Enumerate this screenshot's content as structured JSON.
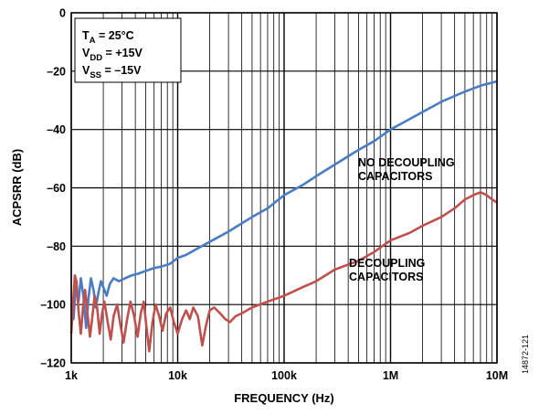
{
  "chart_data": {
    "type": "line",
    "xlabel": "FREQUENCY (Hz)",
    "ylabel": "ACPSRR (dB)",
    "x_scale": "log",
    "xlim": [
      1000,
      10000000
    ],
    "ylim": [
      -120,
      0
    ],
    "grid": true,
    "x_ticks": [
      {
        "value": 1000,
        "label": "1k"
      },
      {
        "value": 10000,
        "label": "10k"
      },
      {
        "value": 100000,
        "label": "100k"
      },
      {
        "value": 1000000,
        "label": "1M"
      },
      {
        "value": 10000000,
        "label": "10M"
      }
    ],
    "y_ticks": [
      {
        "value": 0,
        "label": "0"
      },
      {
        "value": -20,
        "label": "–20"
      },
      {
        "value": -40,
        "label": "–40"
      },
      {
        "value": -60,
        "label": "–60"
      },
      {
        "value": -80,
        "label": "–80"
      },
      {
        "value": -100,
        "label": "–100"
      },
      {
        "value": -120,
        "label": "–120"
      }
    ],
    "conditions": {
      "ta": {
        "main": "T",
        "sub": "A",
        "rest": " = 25°C"
      },
      "vdd": {
        "main": "V",
        "sub": "DD",
        "rest": " = +15V"
      },
      "vss": {
        "main": "V",
        "sub": "SS",
        "rest": " = –15V"
      }
    },
    "series": [
      {
        "label_lines": [
          "NO DECOUPLING",
          "CAPACITORS"
        ],
        "color": "#4a7cc4",
        "points": [
          [
            1000,
            -100
          ],
          [
            1050,
            -105
          ],
          [
            1100,
            -94
          ],
          [
            1170,
            -99
          ],
          [
            1230,
            -91
          ],
          [
            1300,
            -97
          ],
          [
            1380,
            -108
          ],
          [
            1450,
            -98
          ],
          [
            1530,
            -91
          ],
          [
            1620,
            -95
          ],
          [
            1700,
            -101
          ],
          [
            1800,
            -96
          ],
          [
            1900,
            -92
          ],
          [
            2000,
            -94
          ],
          [
            2150,
            -97
          ],
          [
            2300,
            -93
          ],
          [
            2500,
            -91
          ],
          [
            2800,
            -92
          ],
          [
            3200,
            -91
          ],
          [
            3700,
            -90
          ],
          [
            4200,
            -89.5
          ],
          [
            5000,
            -88.5
          ],
          [
            6000,
            -87.5
          ],
          [
            7000,
            -87
          ],
          [
            8500,
            -86
          ],
          [
            10000,
            -84
          ],
          [
            12000,
            -83
          ],
          [
            15000,
            -81
          ],
          [
            20000,
            -78.5
          ],
          [
            30000,
            -75
          ],
          [
            50000,
            -70
          ],
          [
            70000,
            -67
          ],
          [
            100000,
            -62.5
          ],
          [
            150000,
            -59
          ],
          [
            200000,
            -56
          ],
          [
            300000,
            -52
          ],
          [
            500000,
            -47
          ],
          [
            700000,
            -44
          ],
          [
            1000000,
            -40
          ],
          [
            1500000,
            -36.5
          ],
          [
            2000000,
            -34
          ],
          [
            3000000,
            -30.5
          ],
          [
            5000000,
            -27
          ],
          [
            7000000,
            -25
          ],
          [
            10000000,
            -23.5
          ]
        ]
      },
      {
        "label_lines": [
          "DECOUPLING",
          "CAPACITORS"
        ],
        "color": "#c0504d",
        "points": [
          [
            1000,
            -110
          ],
          [
            1040,
            -100
          ],
          [
            1080,
            -90
          ],
          [
            1120,
            -92
          ],
          [
            1170,
            -102
          ],
          [
            1230,
            -110
          ],
          [
            1290,
            -101
          ],
          [
            1350,
            -95
          ],
          [
            1420,
            -103
          ],
          [
            1500,
            -111
          ],
          [
            1580,
            -104
          ],
          [
            1660,
            -97
          ],
          [
            1750,
            -101
          ],
          [
            1850,
            -110
          ],
          [
            1950,
            -103
          ],
          [
            2050,
            -99
          ],
          [
            2200,
            -106
          ],
          [
            2350,
            -112
          ],
          [
            2500,
            -104
          ],
          [
            2700,
            -100
          ],
          [
            2900,
            -107
          ],
          [
            3100,
            -113
          ],
          [
            3350,
            -105
          ],
          [
            3600,
            -99
          ],
          [
            3900,
            -104
          ],
          [
            4200,
            -111
          ],
          [
            4500,
            -103
          ],
          [
            4800,
            -99
          ],
          [
            5100,
            -108
          ],
          [
            5400,
            -116
          ],
          [
            5800,
            -106
          ],
          [
            6200,
            -100
          ],
          [
            6700,
            -104
          ],
          [
            7200,
            -109
          ],
          [
            7800,
            -103
          ],
          [
            8500,
            -101
          ],
          [
            9200,
            -106
          ],
          [
            10000,
            -110
          ],
          [
            11000,
            -105
          ],
          [
            12000,
            -102
          ],
          [
            13000,
            -105
          ],
          [
            14000,
            -101
          ],
          [
            15500,
            -104
          ],
          [
            17000,
            -114
          ],
          [
            18500,
            -107
          ],
          [
            20000,
            -102
          ],
          [
            22000,
            -101
          ],
          [
            25000,
            -103
          ],
          [
            28000,
            -105
          ],
          [
            31000,
            -106
          ],
          [
            35000,
            -104
          ],
          [
            40000,
            -103
          ],
          [
            50000,
            -101
          ],
          [
            70000,
            -99
          ],
          [
            100000,
            -97
          ],
          [
            150000,
            -94
          ],
          [
            200000,
            -92
          ],
          [
            300000,
            -88
          ],
          [
            500000,
            -85
          ],
          [
            700000,
            -82
          ],
          [
            1000000,
            -78
          ],
          [
            1500000,
            -75.5
          ],
          [
            2000000,
            -73
          ],
          [
            3000000,
            -70
          ],
          [
            4000000,
            -67
          ],
          [
            5000000,
            -64
          ],
          [
            6000000,
            -62.5
          ],
          [
            7000000,
            -61.5
          ],
          [
            8000000,
            -62.5
          ],
          [
            9000000,
            -64
          ],
          [
            10000000,
            -65
          ]
        ]
      }
    ]
  },
  "figure_id": "14872-121"
}
